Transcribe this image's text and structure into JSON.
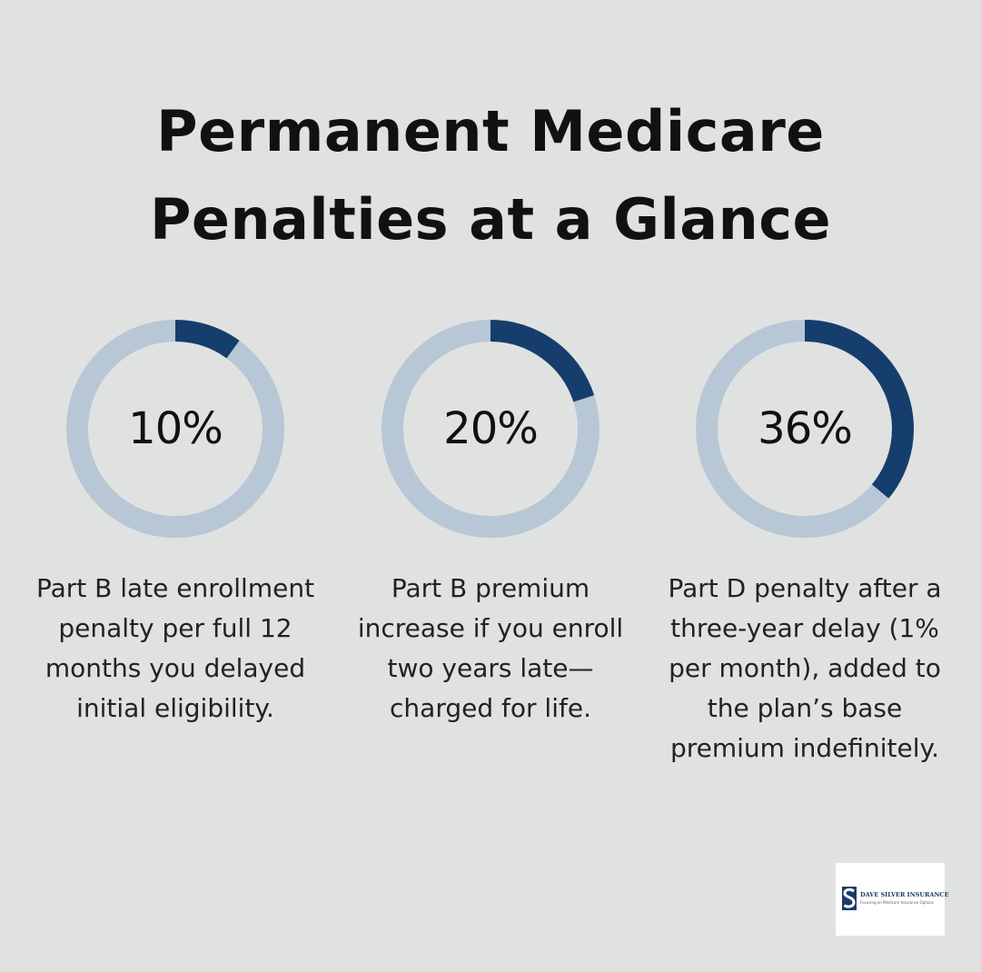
{
  "title": {
    "line1": "Permanent Medicare",
    "line2": "Penalties at a Glance"
  },
  "colors": {
    "background": "#e0e2e1",
    "ring_track": "#b8c7d5",
    "ring_fill": "#163e6c",
    "text": "#111111"
  },
  "chart_data": {
    "type": "pie",
    "style": "donut",
    "categories": [
      "Part B late enrollment penalty",
      "Part B premium increase",
      "Part D penalty"
    ],
    "values": [
      10,
      20,
      36
    ],
    "unit": "%",
    "max": 100,
    "stats": [
      {
        "value": 10,
        "label": "10%",
        "description": "Part B late enrollment penalty per full 12 months you delayed initial eligibility."
      },
      {
        "value": 20,
        "label": "20%",
        "description": "Part B premium increase if you enroll two years late—charged for life."
      },
      {
        "value": 36,
        "label": "36%",
        "description": "Part D penalty after a three-year delay (1% per month), added to the plan’s base premium indefinitely."
      }
    ]
  },
  "logo": {
    "name": "DAVE SILVER INSURANCE",
    "tagline": "Focusing on Medicare Insurance Options",
    "icon": "s-monogram-icon"
  }
}
